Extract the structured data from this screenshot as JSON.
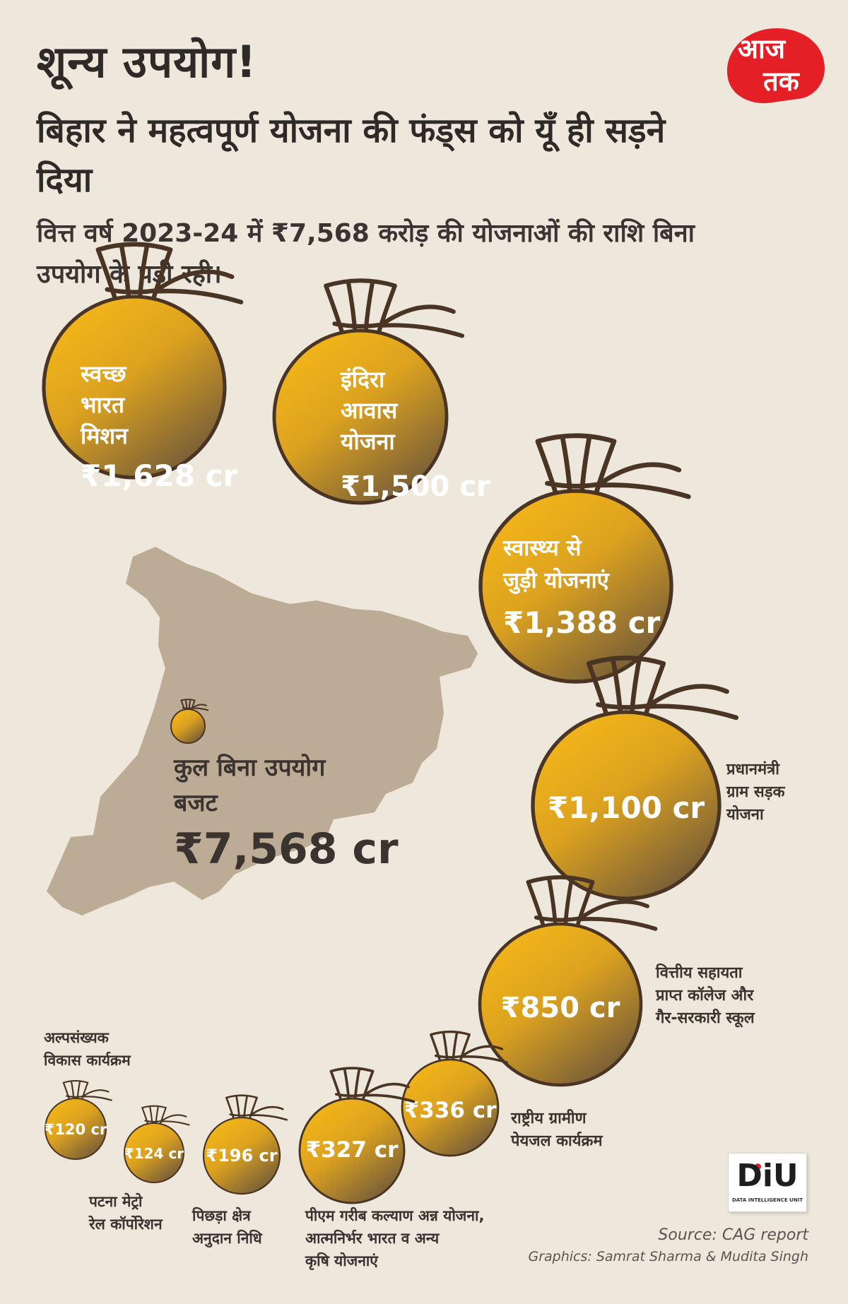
{
  "header": {
    "title": "शून्य उपयोग!",
    "subtitle": "बिहार ने महत्वपूर्ण योजना की फंड्स को यूँ ही सड़ने दिया",
    "intro": "वित्त वर्ष 2023-24 में ₹7,568 करोड़ की योजनाओं की राशि बिना उपयोग के पड़ी रही।"
  },
  "logo": {
    "brand_line1": "आज",
    "brand_line2": "तक",
    "brand_color": "#e42026"
  },
  "total": {
    "label": "कुल बिना उपयोग बजट",
    "value": "₹7,568 cr",
    "map_color": "#bcab95"
  },
  "colors": {
    "bag_light": "#fbbc17",
    "bag_dark": "#735b3a",
    "bag_tie": "#4a3424",
    "text_dark": "#3a3330",
    "text_white": "#ffffff"
  },
  "chart_data": {
    "type": "bubble",
    "unit": "₹ cr",
    "items": [
      {
        "label": "स्वच्छ भारत मिशन",
        "value": 1628,
        "value_label": "₹1,628 cr"
      },
      {
        "label": "इंदिरा आवास योजना",
        "value": 1500,
        "value_label": "₹1,500 cr"
      },
      {
        "label": "स्वास्थ्य से जुड़ी योजनाएं",
        "value": 1388,
        "value_label": "₹1,388 cr"
      },
      {
        "label": "प्रधानमंत्री ग्राम सड़क योजना",
        "value": 1100,
        "value_label": "₹1,100 cr"
      },
      {
        "label": "वित्तीय सहायता प्राप्त कॉलेज और गैर-सरकारी स्कूल",
        "value": 850,
        "value_label": "₹850 cr"
      },
      {
        "label": "राष्ट्रीय ग्रामीण पेयजल कार्यक्रम",
        "value": 336,
        "value_label": "₹336 cr"
      },
      {
        "label": "पीएम गरीब कल्याण अन्न योजना, आत्मनिर्भर भारत व अन्य कृषि योजनाएं",
        "value": 327,
        "value_label": "₹327 cr"
      },
      {
        "label": "पिछड़ा क्षेत्र अनुदान निधि",
        "value": 196,
        "value_label": "₹196 cr"
      },
      {
        "label": "पटना मेट्रो रेल कॉर्पोरेशन",
        "value": 124,
        "value_label": "₹124 cr"
      },
      {
        "label": "अल्पसंख्यक विकास कार्यक्रम",
        "value": 120,
        "value_label": "₹120 cr"
      }
    ]
  },
  "footer": {
    "diu_logo": "DiU",
    "diu_caption": "DATA INTELLIGENCE UNIT",
    "source": "Source: CAG report",
    "credit": "Graphics: Samrat Sharma & Mudita Singh"
  }
}
